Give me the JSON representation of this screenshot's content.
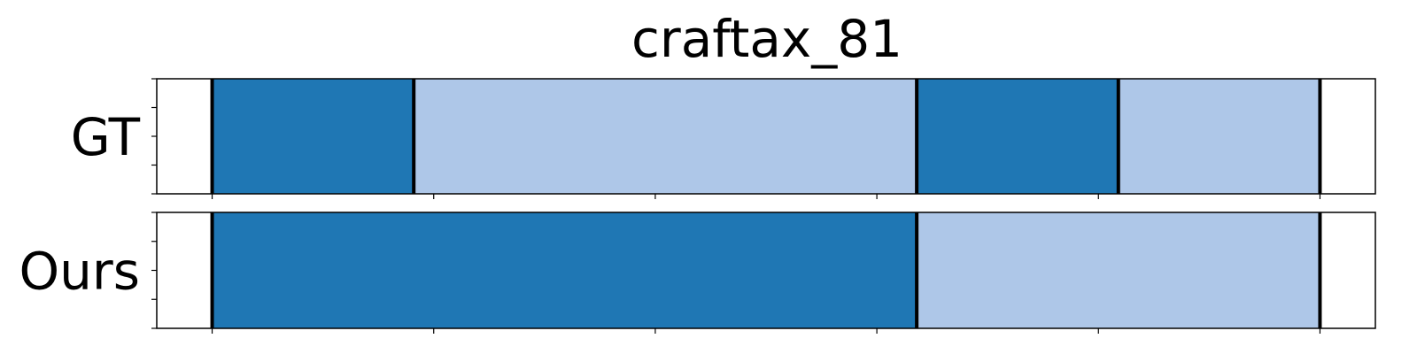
{
  "chart_data": {
    "type": "segmentation",
    "title": "craftax_81",
    "x_range": [
      -12.5,
      262.5
    ],
    "x_ticks": [
      0,
      50,
      100,
      150,
      200,
      250
    ],
    "colors": {
      "dark": "#1f77b4",
      "light": "#aec7e8",
      "boundary": "#000000",
      "background": "#ffffff"
    },
    "rows": [
      {
        "label": "GT",
        "segments": [
          {
            "start": 0,
            "end": 45.5,
            "color": "dark"
          },
          {
            "start": 45.5,
            "end": 159,
            "color": "light"
          },
          {
            "start": 159,
            "end": 204.5,
            "color": "dark"
          },
          {
            "start": 204.5,
            "end": 250,
            "color": "light"
          }
        ],
        "boundaries": [
          0,
          45.5,
          159,
          204.5,
          250
        ]
      },
      {
        "label": "Ours",
        "segments": [
          {
            "start": 0,
            "end": 159,
            "color": "dark"
          },
          {
            "start": 159,
            "end": 250,
            "color": "light"
          }
        ],
        "boundaries": [
          0,
          159,
          250
        ]
      }
    ]
  }
}
